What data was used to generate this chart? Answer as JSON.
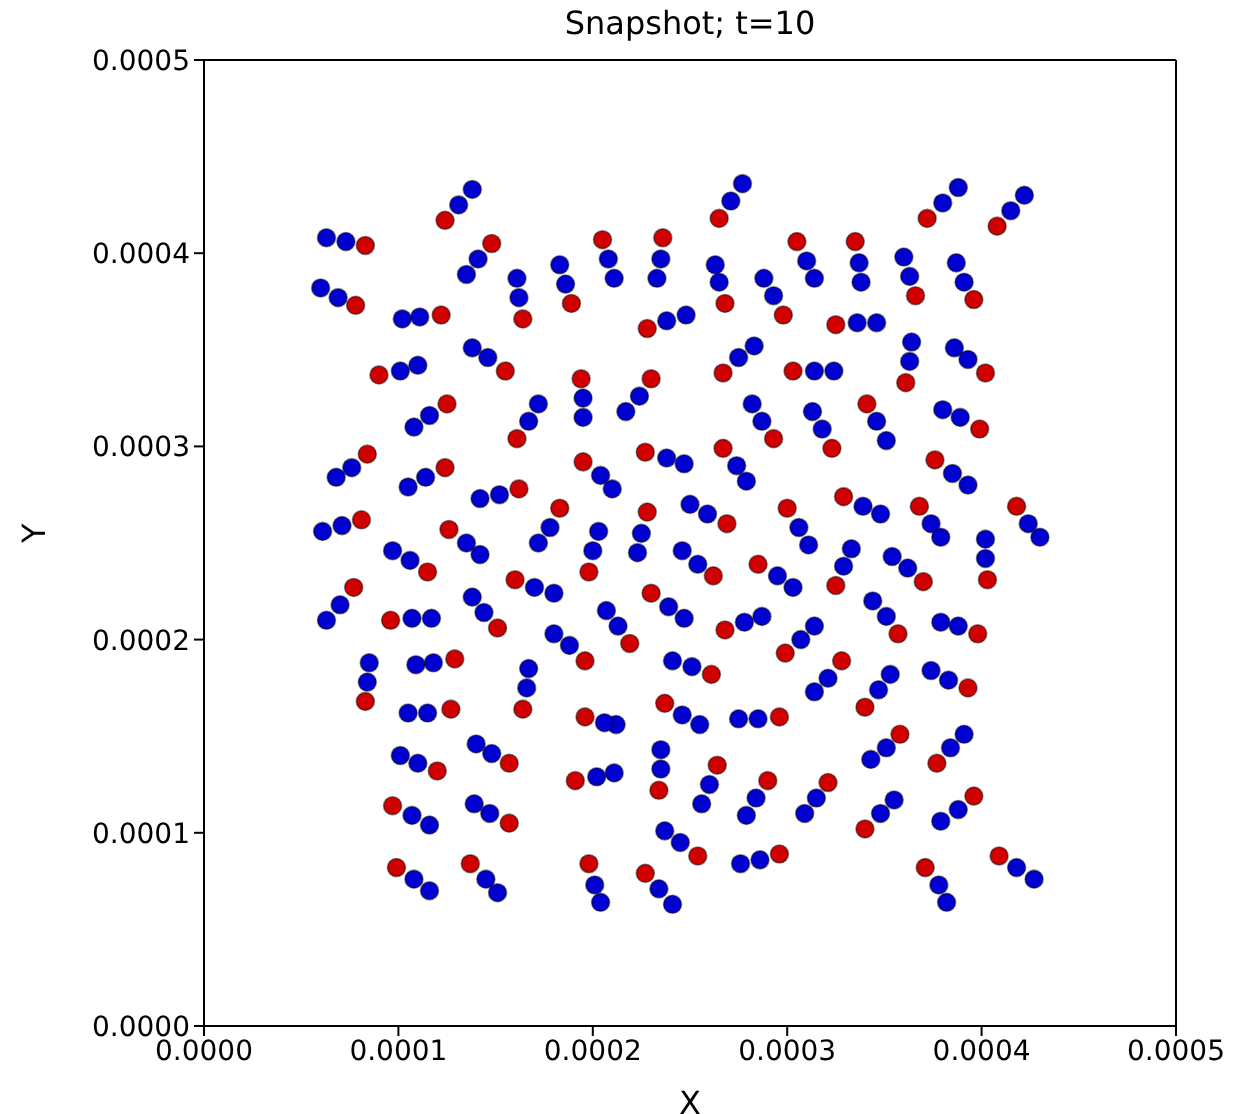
{
  "chart_data": {
    "type": "scatter",
    "title": "Snapshot; t=10",
    "xlabel": "X",
    "ylabel": "Y",
    "marker": "circle",
    "xlim": [
      0,
      0.0005
    ],
    "ylim": [
      0,
      0.0005
    ],
    "xticks": [
      {
        "value": 0,
        "label": "0.0000"
      },
      {
        "value": 0.0001,
        "label": "0.0001"
      },
      {
        "value": 0.0002,
        "label": "0.0002"
      },
      {
        "value": 0.0003,
        "label": "0.0003"
      },
      {
        "value": 0.0004,
        "label": "0.0004"
      },
      {
        "value": 0.0005,
        "label": "0.0005"
      }
    ],
    "yticks": [
      {
        "value": 0,
        "label": "0.0000"
      },
      {
        "value": 0.0001,
        "label": "0.0001"
      },
      {
        "value": 0.0002,
        "label": "0.0002"
      },
      {
        "value": 0.0003,
        "label": "0.0003"
      },
      {
        "value": 0.0004,
        "label": "0.0004"
      },
      {
        "value": 0.0005,
        "label": "0.0005"
      }
    ],
    "series": [
      {
        "color": "#0000d0",
        "x": [
          0.000138,
          0.000131,
          6.3e-05,
          7.3e-05,
          0.000135,
          0.000141,
          0.000161,
          0.000162,
          0.000183,
          0.000186,
          0.000211,
          0.000208,
          6e-05,
          6.9e-05,
          0.000102,
          0.000111,
          0.000138,
          0.000146,
          0.00011,
          0.000101,
          0.000195,
          0.000195,
          0.000108,
          0.000116,
          0.000172,
          0.000167,
          6.8e-05,
          7.6e-05,
          0.000105,
          0.000114,
          0.000142,
          0.000152,
          0.00021,
          0.000204,
          6.1e-05,
          7.1e-05,
          0.000142,
          0.000135,
          0.000172,
          0.000178,
          0.000203,
          0.0002,
          9.7e-05,
          0.000106,
          0.00018,
          0.00017,
          6.3e-05,
          7e-05,
          0.000117,
          0.000107,
          0.000138,
          0.000144,
          0.00018,
          0.000188,
          8.5e-05,
          8.4e-05,
          0.000109,
          0.000118,
          0.000167,
          0.000166,
          0.000105,
          0.000115,
          0.000212,
          0.000206,
          0.000101,
          0.00011,
          0.00014,
          0.000148,
          0.000211,
          0.000202,
          0.000116,
          0.000107,
          0.000139,
          0.000147,
          0.000116,
          0.000108,
          0.000151,
          0.000145,
          0.000204,
          0.000201,
          0.000277,
          0.000271,
          0.000388,
          0.00038,
          0.000422,
          0.000415,
          0.000233,
          0.000235,
          0.000263,
          0.000265,
          0.000314,
          0.00031,
          0.000338,
          0.000337,
          0.00036,
          0.000363,
          0.000387,
          0.000391,
          0.000288,
          0.000293,
          0.000248,
          0.000238,
          0.000346,
          0.000336,
          0.000217,
          0.000224,
          0.000283,
          0.000275,
          0.000324,
          0.000314,
          0.000364,
          0.000363,
          0.000386,
          0.000393,
          0.000282,
          0.000287,
          0.000313,
          0.000318,
          0.000351,
          0.000346,
          0.00038,
          0.000389,
          0.000247,
          0.000238,
          0.000279,
          0.000274,
          0.000393,
          0.000385,
          0.00025,
          0.000259,
          0.000311,
          0.000306,
          0.000348,
          0.000339,
          0.000379,
          0.000374,
          0.00043,
          0.000424,
          0.000223,
          0.000225,
          0.000402,
          0.000402,
          0.000246,
          0.000254,
          0.000303,
          0.000295,
          0.000333,
          0.000329,
          0.000354,
          0.000362,
          0.000247,
          0.000239,
          0.000207,
          0.000213,
          0.000287,
          0.000278,
          0.000314,
          0.000307,
          0.000344,
          0.000351,
          0.000379,
          0.000388,
          0.000241,
          0.000251,
          0.000314,
          0.000321,
          0.000353,
          0.000347,
          0.000374,
          0.000383,
          0.000255,
          0.000246,
          0.000275,
          0.000285,
          0.000235,
          0.000235,
          0.000343,
          0.000351,
          0.000391,
          0.000384,
          0.000256,
          0.00026,
          0.000279,
          0.000284,
          0.000309,
          0.000315,
          0.000355,
          0.000348,
          0.000379,
          0.000388,
          0.000237,
          0.000245,
          0.000276,
          0.000286,
          0.000241,
          0.000234,
          0.000382,
          0.000378,
          0.000427,
          0.000418
        ],
        "values": [
          0.000433,
          0.000425,
          0.000408,
          0.000406,
          0.000389,
          0.000397,
          0.000387,
          0.000377,
          0.000394,
          0.000384,
          0.000387,
          0.000397,
          0.000382,
          0.000377,
          0.000366,
          0.000367,
          0.000351,
          0.000346,
          0.000342,
          0.000339,
          0.000315,
          0.000325,
          0.00031,
          0.000316,
          0.000322,
          0.000313,
          0.000284,
          0.000289,
          0.000279,
          0.000284,
          0.000273,
          0.000275,
          0.000278,
          0.000285,
          0.000256,
          0.000259,
          0.000244,
          0.00025,
          0.00025,
          0.000258,
          0.000256,
          0.000246,
          0.000246,
          0.000241,
          0.000224,
          0.000227,
          0.00021,
          0.000218,
          0.000211,
          0.000211,
          0.000222,
          0.000214,
          0.000203,
          0.000197,
          0.000188,
          0.000178,
          0.000187,
          0.000188,
          0.000185,
          0.000175,
          0.000162,
          0.000162,
          0.000156,
          0.000157,
          0.00014,
          0.000136,
          0.000146,
          0.000141,
          0.000131,
          0.000129,
          0.000104,
          0.000109,
          0.000115,
          0.00011,
          7e-05,
          7.6e-05,
          6.9e-05,
          7.6e-05,
          6.4e-05,
          7.3e-05,
          0.000436,
          0.000427,
          0.000434,
          0.000426,
          0.00043,
          0.000422,
          0.000387,
          0.000397,
          0.000394,
          0.000385,
          0.000387,
          0.000396,
          0.000385,
          0.000395,
          0.000398,
          0.000388,
          0.000395,
          0.000385,
          0.000387,
          0.000378,
          0.000368,
          0.000365,
          0.000364,
          0.000364,
          0.000318,
          0.000326,
          0.000352,
          0.000346,
          0.000339,
          0.000339,
          0.000354,
          0.000344,
          0.000351,
          0.000345,
          0.000322,
          0.000313,
          0.000318,
          0.000309,
          0.000303,
          0.000313,
          0.000319,
          0.000315,
          0.000291,
          0.000294,
          0.000282,
          0.00029,
          0.00028,
          0.000286,
          0.00027,
          0.000265,
          0.000249,
          0.000258,
          0.000265,
          0.000269,
          0.000253,
          0.00026,
          0.000253,
          0.00026,
          0.000245,
          0.000255,
          0.000252,
          0.000242,
          0.000246,
          0.000239,
          0.000227,
          0.000233,
          0.000247,
          0.000238,
          0.000243,
          0.000237,
          0.000211,
          0.000217,
          0.000215,
          0.000207,
          0.000212,
          0.000209,
          0.000207,
          0.0002,
          0.00022,
          0.000212,
          0.000209,
          0.000207,
          0.000189,
          0.000186,
          0.000173,
          0.00018,
          0.000182,
          0.000174,
          0.000184,
          0.000179,
          0.000156,
          0.000161,
          0.000159,
          0.000159,
          0.000143,
          0.000133,
          0.000138,
          0.000144,
          0.000151,
          0.000144,
          0.000115,
          0.000125,
          0.000109,
          0.000118,
          0.00011,
          0.000118,
          0.000117,
          0.00011,
          0.000106,
          0.000112,
          0.000101,
          9.5e-05,
          8.4e-05,
          8.6e-05,
          6.3e-05,
          7.1e-05,
          6.4e-05,
          7.3e-05,
          7.6e-05,
          8.2e-05
        ]
      },
      {
        "color": "#d00000",
        "x": [
          0.000124,
          8.3e-05,
          0.000148,
          0.000164,
          0.000189,
          0.000205,
          7.8e-05,
          0.000122,
          0.000155,
          9e-05,
          0.000194,
          0.000125,
          0.000161,
          8.4e-05,
          0.000124,
          0.000162,
          0.000195,
          8.1e-05,
          0.000126,
          0.000183,
          0.000198,
          0.000115,
          0.00016,
          7.7e-05,
          9.6e-05,
          0.000151,
          0.000196,
          8.3e-05,
          0.000129,
          0.000164,
          0.000127,
          0.000196,
          0.00012,
          0.000157,
          0.000191,
          9.7e-05,
          0.000157,
          9.9e-05,
          0.000137,
          0.000198,
          0.000265,
          0.000372,
          0.000408,
          0.000236,
          0.000268,
          0.000305,
          0.000335,
          0.000366,
          0.000396,
          0.000298,
          0.000228,
          0.000325,
          0.00023,
          0.000267,
          0.000303,
          0.000361,
          0.000402,
          0.000293,
          0.000323,
          0.000341,
          0.000399,
          0.000227,
          0.000267,
          0.000376,
          0.000269,
          0.0003,
          0.000329,
          0.000368,
          0.000418,
          0.000228,
          0.000403,
          0.000262,
          0.000285,
          0.000325,
          0.00037,
          0.00023,
          0.000219,
          0.000268,
          0.000299,
          0.000357,
          0.000398,
          0.000261,
          0.000328,
          0.00034,
          0.000393,
          0.000237,
          0.000296,
          0.000234,
          0.000358,
          0.000377,
          0.000264,
          0.00029,
          0.000321,
          0.00034,
          0.000396,
          0.000254,
          0.000296,
          0.000227,
          0.000371,
          0.000409
        ],
        "values": [
          0.000417,
          0.000404,
          0.000405,
          0.000366,
          0.000374,
          0.000407,
          0.000373,
          0.000368,
          0.000339,
          0.000337,
          0.000335,
          0.000322,
          0.000304,
          0.000296,
          0.000289,
          0.000278,
          0.000292,
          0.000262,
          0.000257,
          0.000268,
          0.000235,
          0.000235,
          0.000231,
          0.000227,
          0.00021,
          0.000206,
          0.000189,
          0.000168,
          0.00019,
          0.000164,
          0.000164,
          0.00016,
          0.000132,
          0.000136,
          0.000127,
          0.000114,
          0.000105,
          8.2e-05,
          8.4e-05,
          8.4e-05,
          0.000418,
          0.000418,
          0.000414,
          0.000408,
          0.000374,
          0.000406,
          0.000406,
          0.000378,
          0.000376,
          0.000368,
          0.000361,
          0.000363,
          0.000335,
          0.000338,
          0.000339,
          0.000333,
          0.000338,
          0.000304,
          0.000299,
          0.000322,
          0.000309,
          0.000297,
          0.000299,
          0.000293,
          0.00026,
          0.000268,
          0.000274,
          0.000269,
          0.000269,
          0.000266,
          0.000231,
          0.000233,
          0.000239,
          0.000228,
          0.00023,
          0.000224,
          0.000198,
          0.000205,
          0.000193,
          0.000203,
          0.000203,
          0.000182,
          0.000189,
          0.000165,
          0.000175,
          0.000167,
          0.00016,
          0.000122,
          0.000151,
          0.000136,
          0.000135,
          0.000127,
          0.000126,
          0.000102,
          0.000119,
          8.8e-05,
          8.9e-05,
          7.9e-05,
          8.2e-05,
          8.8e-05
        ]
      }
    ]
  }
}
